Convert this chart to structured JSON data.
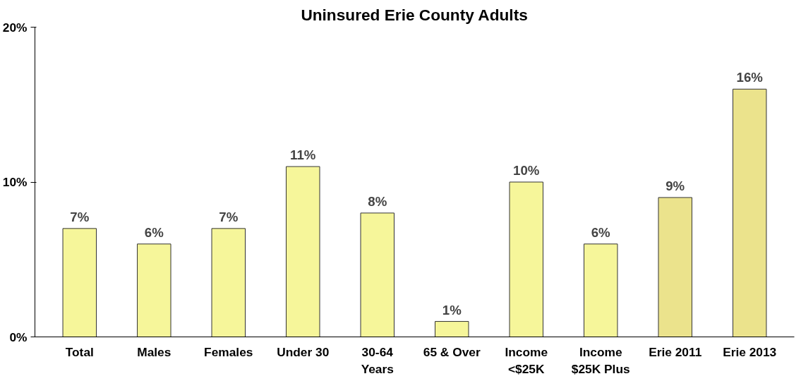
{
  "chart_data": {
    "type": "bar",
    "title": "Uninsured Erie County Adults",
    "categories": [
      "Total",
      "Males",
      "Females",
      "Under 30",
      "30-64\nYears",
      "65 & Over",
      "Income\n<$25K",
      "Income\n$25K Plus",
      "Erie 2011",
      "Erie 2013"
    ],
    "values": [
      7,
      6,
      7,
      11,
      8,
      1,
      10,
      6,
      9,
      16
    ],
    "value_labels": [
      "7%",
      "6%",
      "7%",
      "11%",
      "8%",
      "1%",
      "10%",
      "6%",
      "9%",
      "16%"
    ],
    "colors": [
      "#f6f69a",
      "#f6f69a",
      "#f6f69a",
      "#f6f69a",
      "#f6f69a",
      "#f6f69a",
      "#f6f69a",
      "#f6f69a",
      "#ebe38c",
      "#ebe38c"
    ],
    "ylim": [
      0,
      20
    ],
    "yticks": [
      {
        "value": 0,
        "label": "0%"
      },
      {
        "value": 10,
        "label": "10%"
      },
      {
        "value": 20,
        "label": "20%"
      }
    ],
    "grid": false
  }
}
